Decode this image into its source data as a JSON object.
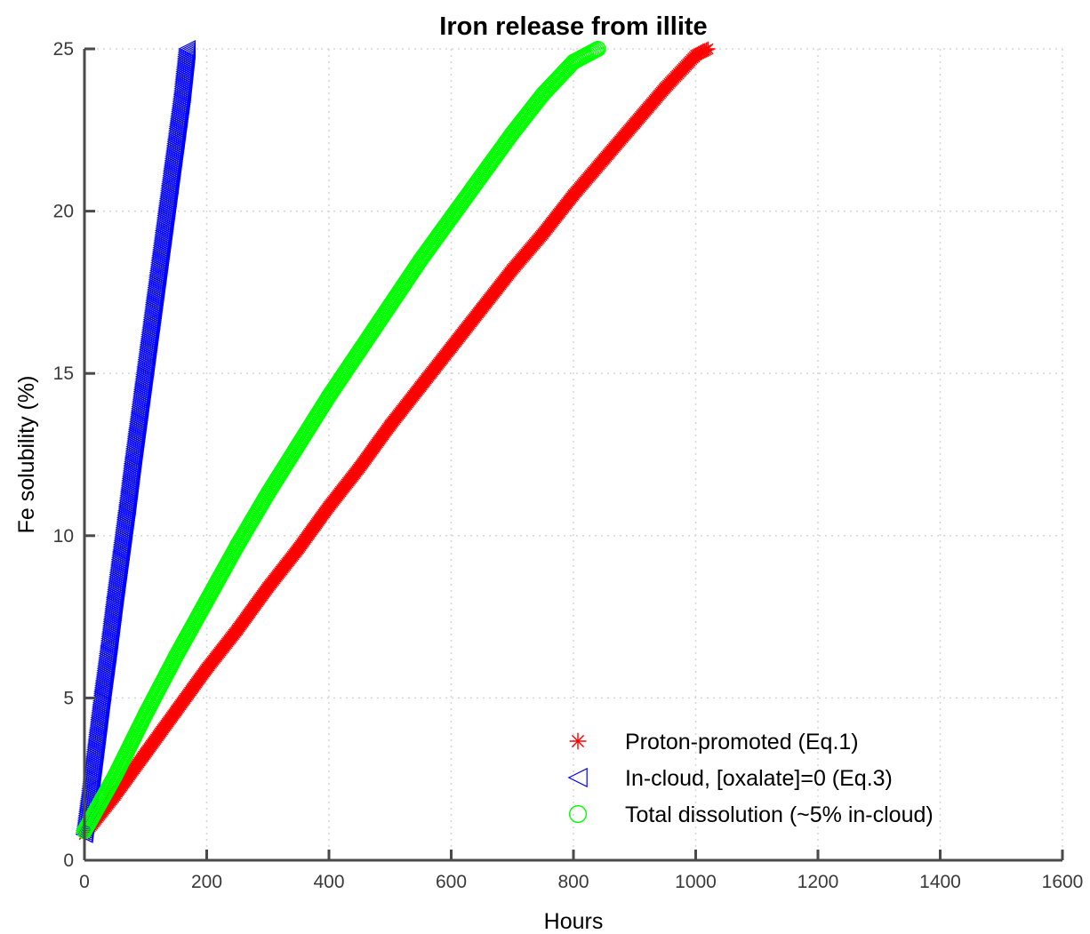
{
  "chart_data": {
    "type": "scatter",
    "title": "Iron release from illite",
    "xlabel": "Hours",
    "ylabel": "Fe solubility (%)",
    "xlim": [
      0,
      1600
    ],
    "ylim": [
      0,
      25
    ],
    "xticks": [
      "0",
      "200",
      "400",
      "600",
      "800",
      "1000",
      "1200",
      "1400",
      "1600"
    ],
    "yticks": [
      "0",
      "5",
      "10",
      "15",
      "20",
      "25"
    ],
    "grid": true,
    "legend_position": "bottom-right",
    "series": [
      {
        "name": "Proton-promoted (Eq.1)",
        "marker": "asterisk",
        "color": "#ff0000",
        "x": [
          0,
          50,
          100,
          150,
          200,
          250,
          300,
          350,
          400,
          450,
          500,
          550,
          600,
          650,
          700,
          750,
          800,
          850,
          900,
          950,
          1000,
          1020
        ],
        "y": [
          0.8,
          2.0,
          3.3,
          4.6,
          5.9,
          7.1,
          8.4,
          9.6,
          10.9,
          12.1,
          13.4,
          14.6,
          15.8,
          17.0,
          18.2,
          19.3,
          20.5,
          21.6,
          22.7,
          23.8,
          24.8,
          25.0
        ]
      },
      {
        "name": "In-cloud, [oxalate]=0 (Eq.3)",
        "marker": "triangle-left",
        "color": "#0000ff",
        "x": [
          0,
          10,
          20,
          30,
          40,
          50,
          60,
          70,
          80,
          90,
          100,
          110,
          120,
          130,
          140,
          150,
          160,
          168
        ],
        "y": [
          0.8,
          2.2,
          3.7,
          5.2,
          6.6,
          8.1,
          9.5,
          10.9,
          12.4,
          13.8,
          15.2,
          16.6,
          18.0,
          19.4,
          20.8,
          22.2,
          23.6,
          25.0
        ]
      },
      {
        "name": "Total dissolution (~5% in-cloud)",
        "marker": "circle",
        "color": "#00ff00",
        "x": [
          0,
          50,
          100,
          150,
          200,
          250,
          300,
          350,
          400,
          450,
          500,
          550,
          600,
          650,
          700,
          750,
          800,
          840
        ],
        "y": [
          0.9,
          2.6,
          4.5,
          6.3,
          8.0,
          9.7,
          11.3,
          12.8,
          14.3,
          15.7,
          17.1,
          18.5,
          19.8,
          21.1,
          22.4,
          23.6,
          24.6,
          25.0
        ]
      }
    ]
  }
}
